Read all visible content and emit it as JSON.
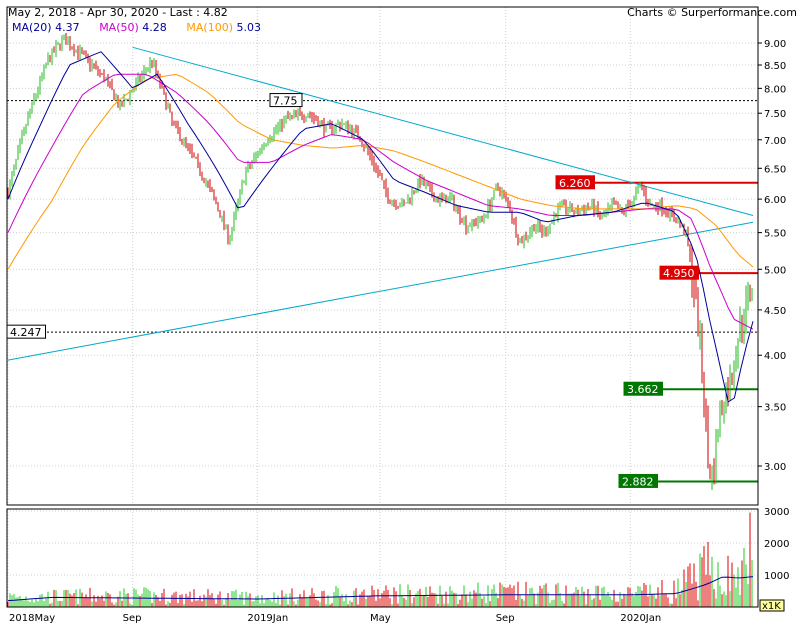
{
  "header": {
    "range_text": "May 2, 2018 - Apr 30, 2020 - Last : 4.82",
    "credit": "Charts © Surperformance.com"
  },
  "legend": [
    {
      "name": "MA(20)",
      "value": "4.37",
      "color": "#000099"
    },
    {
      "name": "MA(50)",
      "value": "4.28",
      "color": "#cc00cc"
    },
    {
      "name": "MA(100)",
      "value": "5.03",
      "color": "#ff9900"
    }
  ],
  "chart_data": {
    "type": "bar",
    "price_axis": {
      "ticks": [
        "9.00",
        "8.50",
        "8.00",
        "7.50",
        "7.00",
        "6.50",
        "6.00",
        "5.50",
        "5.00",
        "4.50",
        "4.00",
        "3.50",
        "3.00"
      ],
      "scale": "log",
      "range": [
        2.75,
        9.5
      ]
    },
    "volume_axis": {
      "ticks": [
        "3000",
        "2000",
        "1000"
      ],
      "unit_label": "x1K",
      "range": [
        0,
        3000
      ]
    },
    "x_labels": [
      "2018May",
      "Sep",
      "2019Jan",
      "May",
      "Sep",
      "2020Jan"
    ],
    "annotations": [
      {
        "text": "7.75",
        "value": 7.75,
        "style": "dashed",
        "color": "#000000"
      },
      {
        "text": "4.247",
        "value": 4.247,
        "style": "dashed",
        "color": "#000000"
      },
      {
        "text": "6.260",
        "value": 6.26,
        "style": "solid",
        "color": "#dd0000"
      },
      {
        "text": "4.950",
        "value": 4.95,
        "style": "solid",
        "color": "#dd0000"
      },
      {
        "text": "3.662",
        "value": 3.662,
        "style": "solid",
        "color": "#007700"
      },
      {
        "text": "2.882",
        "value": 2.882,
        "style": "solid",
        "color": "#007700"
      }
    ],
    "trendlines": [
      {
        "from": [
          "2018-09-01",
          8.9
        ],
        "to": [
          "2020-04-30",
          5.75
        ],
        "color": "#00aacc"
      },
      {
        "from": [
          "2018-05-02",
          3.95
        ],
        "to": [
          "2020-04-30",
          5.65
        ],
        "color": "#00aacc"
      }
    ],
    "price_keypoints": [
      [
        "2018-05-02",
        6.1
      ],
      [
        "2018-05-20",
        7.3
      ],
      [
        "2018-06-10",
        8.6
      ],
      [
        "2018-06-25",
        9.1
      ],
      [
        "2018-07-10",
        8.8
      ],
      [
        "2018-08-05",
        8.2
      ],
      [
        "2018-08-20",
        7.6
      ],
      [
        "2018-09-05",
        8.1
      ],
      [
        "2018-09-20",
        8.6
      ],
      [
        "2018-10-10",
        7.3
      ],
      [
        "2018-10-30",
        6.7
      ],
      [
        "2018-11-20",
        6.0
      ],
      [
        "2018-12-05",
        5.4
      ],
      [
        "2018-12-20",
        6.4
      ],
      [
        "2019-01-10",
        7.0
      ],
      [
        "2019-01-30",
        7.4
      ],
      [
        "2019-02-20",
        7.5
      ],
      [
        "2019-03-10",
        7.2
      ],
      [
        "2019-03-25",
        7.3
      ],
      [
        "2019-04-10",
        7.1
      ],
      [
        "2019-04-25",
        6.6
      ],
      [
        "2019-05-10",
        6.0
      ],
      [
        "2019-05-25",
        5.9
      ],
      [
        "2019-06-10",
        6.3
      ],
      [
        "2019-06-25",
        6.0
      ],
      [
        "2019-07-10",
        6.0
      ],
      [
        "2019-07-25",
        5.6
      ],
      [
        "2019-08-10",
        5.7
      ],
      [
        "2019-08-25",
        6.2
      ],
      [
        "2019-09-05",
        5.9
      ],
      [
        "2019-09-15",
        5.35
      ],
      [
        "2019-09-30",
        5.6
      ],
      [
        "2019-10-10",
        5.5
      ],
      [
        "2019-10-25",
        5.9
      ],
      [
        "2019-11-10",
        5.8
      ],
      [
        "2019-11-25",
        5.9
      ],
      [
        "2019-12-05",
        5.7
      ],
      [
        "2019-12-15",
        5.9
      ],
      [
        "2019-12-25",
        5.8
      ],
      [
        "2020-01-05",
        6.0
      ],
      [
        "2020-01-12",
        6.25
      ],
      [
        "2020-01-20",
        5.9
      ],
      [
        "2020-02-01",
        5.9
      ],
      [
        "2020-02-15",
        5.7
      ],
      [
        "2020-02-25",
        5.5
      ],
      [
        "2020-03-05",
        4.7
      ],
      [
        "2020-03-10",
        4.1
      ],
      [
        "2020-03-15",
        3.5
      ],
      [
        "2020-03-18",
        3.0
      ],
      [
        "2020-03-23",
        2.9
      ],
      [
        "2020-03-27",
        3.3
      ],
      [
        "2020-04-03",
        3.6
      ],
      [
        "2020-04-08",
        3.7
      ],
      [
        "2020-04-13",
        4.0
      ],
      [
        "2020-04-18",
        4.3
      ],
      [
        "2020-04-23",
        4.5
      ],
      [
        "2020-04-30",
        4.82
      ]
    ],
    "ma20_keypoints": [
      [
        "2018-05-02",
        6.0
      ],
      [
        "2018-06-01",
        7.2
      ],
      [
        "2018-07-01",
        8.5
      ],
      [
        "2018-08-01",
        8.8
      ],
      [
        "2018-09-01",
        8.0
      ],
      [
        "2018-09-25",
        8.3
      ],
      [
        "2018-10-25",
        7.3
      ],
      [
        "2018-11-25",
        6.4
      ],
      [
        "2018-12-15",
        5.8
      ],
      [
        "2019-01-15",
        6.5
      ],
      [
        "2019-02-15",
        7.2
      ],
      [
        "2019-03-15",
        7.3
      ],
      [
        "2019-04-15",
        7.0
      ],
      [
        "2019-05-15",
        6.3
      ],
      [
        "2019-06-15",
        6.1
      ],
      [
        "2019-07-15",
        5.9
      ],
      [
        "2019-08-15",
        5.8
      ],
      [
        "2019-09-15",
        5.8
      ],
      [
        "2019-10-10",
        5.65
      ],
      [
        "2019-11-10",
        5.75
      ],
      [
        "2019-12-15",
        5.8
      ],
      [
        "2020-01-15",
        5.95
      ],
      [
        "2020-02-15",
        5.8
      ],
      [
        "2020-03-05",
        5.2
      ],
      [
        "2020-03-20",
        4.3
      ],
      [
        "2020-04-05",
        3.55
      ],
      [
        "2020-04-10",
        3.5
      ],
      [
        "2020-04-20",
        3.95
      ],
      [
        "2020-04-30",
        4.37
      ]
    ],
    "ma50_keypoints": [
      [
        "2018-05-02",
        5.5
      ],
      [
        "2018-06-15",
        6.9
      ],
      [
        "2018-07-15",
        7.9
      ],
      [
        "2018-08-15",
        8.3
      ],
      [
        "2018-09-15",
        8.3
      ],
      [
        "2018-10-15",
        7.9
      ],
      [
        "2018-11-15",
        7.3
      ],
      [
        "2018-12-15",
        6.6
      ],
      [
        "2019-01-15",
        6.6
      ],
      [
        "2019-02-15",
        6.9
      ],
      [
        "2019-03-15",
        7.1
      ],
      [
        "2019-04-15",
        7.0
      ],
      [
        "2019-05-15",
        6.6
      ],
      [
        "2019-06-15",
        6.3
      ],
      [
        "2019-07-15",
        6.1
      ],
      [
        "2019-08-15",
        5.9
      ],
      [
        "2019-09-15",
        5.85
      ],
      [
        "2019-10-15",
        5.75
      ],
      [
        "2019-11-15",
        5.75
      ],
      [
        "2019-12-15",
        5.8
      ],
      [
        "2020-01-15",
        5.85
      ],
      [
        "2020-02-15",
        5.85
      ],
      [
        "2020-03-01",
        5.7
      ],
      [
        "2020-03-20",
        5.0
      ],
      [
        "2020-04-10",
        4.4
      ],
      [
        "2020-04-30",
        4.28
      ]
    ],
    "ma100_keypoints": [
      [
        "2018-05-02",
        5.0
      ],
      [
        "2018-06-15",
        6.0
      ],
      [
        "2018-07-15",
        6.9
      ],
      [
        "2018-08-15",
        7.7
      ],
      [
        "2018-09-15",
        8.2
      ],
      [
        "2018-10-15",
        8.3
      ],
      [
        "2018-11-15",
        7.9
      ],
      [
        "2018-12-15",
        7.3
      ],
      [
        "2019-01-15",
        7.0
      ],
      [
        "2019-02-15",
        6.9
      ],
      [
        "2019-03-15",
        6.85
      ],
      [
        "2019-04-15",
        6.9
      ],
      [
        "2019-05-15",
        6.8
      ],
      [
        "2019-06-15",
        6.6
      ],
      [
        "2019-07-15",
        6.4
      ],
      [
        "2019-08-15",
        6.2
      ],
      [
        "2019-09-15",
        6.0
      ],
      [
        "2019-10-15",
        5.9
      ],
      [
        "2019-11-15",
        5.85
      ],
      [
        "2019-12-15",
        5.85
      ],
      [
        "2020-01-15",
        5.85
      ],
      [
        "2020-02-15",
        5.9
      ],
      [
        "2020-03-05",
        5.85
      ],
      [
        "2020-03-25",
        5.6
      ],
      [
        "2020-04-15",
        5.2
      ],
      [
        "2020-04-30",
        5.03
      ]
    ],
    "volume_keypoints": [
      [
        "2018-05-02",
        300
      ],
      [
        "2018-09-01",
        350
      ],
      [
        "2019-01-01",
        300
      ],
      [
        "2019-05-01",
        400
      ],
      [
        "2019-09-01",
        450
      ],
      [
        "2020-01-01",
        400
      ],
      [
        "2020-02-15",
        500
      ],
      [
        "2020-03-20",
        1200
      ],
      [
        "2020-04-10",
        900
      ],
      [
        "2020-04-25",
        1100
      ],
      [
        "2020-04-29",
        2950
      ]
    ],
    "volume_ma_keypoints": [
      [
        "2018-05-02",
        200
      ],
      [
        "2018-06-15",
        300
      ],
      [
        "2018-09-01",
        280
      ],
      [
        "2019-01-01",
        250
      ],
      [
        "2019-05-01",
        350
      ],
      [
        "2019-09-01",
        380
      ],
      [
        "2020-01-01",
        380
      ],
      [
        "2020-02-15",
        420
      ],
      [
        "2020-03-15",
        700
      ],
      [
        "2020-04-01",
        950
      ],
      [
        "2020-04-15",
        900
      ],
      [
        "2020-04-30",
        950
      ]
    ]
  }
}
